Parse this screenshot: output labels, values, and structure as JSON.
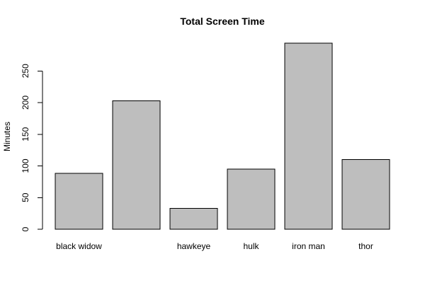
{
  "chart_data": {
    "type": "bar",
    "title": "Total Screen Time",
    "xlabel": "",
    "ylabel": "Minutes",
    "categories": [
      "black widow",
      "",
      "hawkeye",
      "hulk",
      "iron man",
      "thor"
    ],
    "values": [
      88,
      203,
      33,
      95,
      294,
      110
    ],
    "ylim": [
      0,
      294
    ],
    "yticks": [
      0,
      50,
      100,
      150,
      200,
      250
    ],
    "colors": {
      "bar_fill": "#bebebe",
      "bar_stroke": "#000000"
    },
    "grid": false,
    "legend": "none"
  }
}
